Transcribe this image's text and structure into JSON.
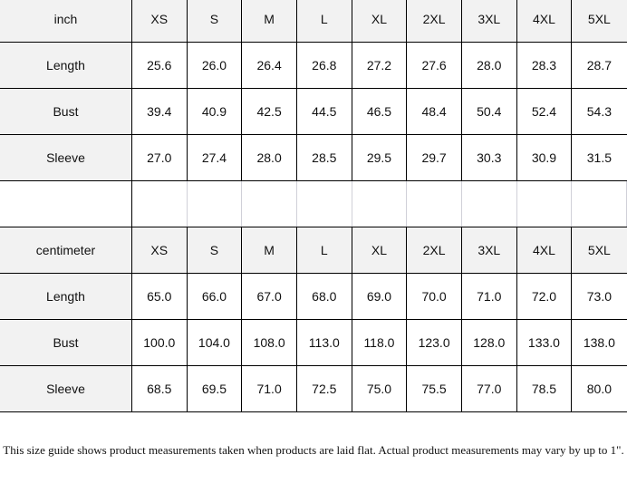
{
  "inch_table": {
    "unit_label": "inch",
    "sizes": [
      "XS",
      "S",
      "M",
      "L",
      "XL",
      "2XL",
      "3XL",
      "4XL",
      "5XL"
    ],
    "rows": [
      {
        "label": "Length",
        "values": [
          "25.6",
          "26.0",
          "26.4",
          "26.8",
          "27.2",
          "27.6",
          "28.0",
          "28.3",
          "28.7"
        ]
      },
      {
        "label": "Bust",
        "values": [
          "39.4",
          "40.9",
          "42.5",
          "44.5",
          "46.5",
          "48.4",
          "50.4",
          "52.4",
          "54.3"
        ]
      },
      {
        "label": "Sleeve",
        "values": [
          "27.0",
          "27.4",
          "28.0",
          "28.5",
          "29.5",
          "29.7",
          "30.3",
          "30.9",
          "31.5"
        ]
      }
    ]
  },
  "cm_table": {
    "unit_label": "centimeter",
    "sizes": [
      "XS",
      "S",
      "M",
      "L",
      "XL",
      "2XL",
      "3XL",
      "4XL",
      "5XL"
    ],
    "rows": [
      {
        "label": "Length",
        "values": [
          "65.0",
          "66.0",
          "67.0",
          "68.0",
          "69.0",
          "70.0",
          "71.0",
          "72.0",
          "73.0"
        ]
      },
      {
        "label": "Bust",
        "values": [
          "100.0",
          "104.0",
          "108.0",
          "113.0",
          "118.0",
          "123.0",
          "128.0",
          "133.0",
          "138.0"
        ]
      },
      {
        "label": "Sleeve",
        "values": [
          "68.5",
          "69.5",
          "71.0",
          "72.5",
          "75.0",
          "75.5",
          "77.0",
          "78.5",
          "80.0"
        ]
      }
    ]
  },
  "note": "This size guide shows product measurements taken when products are laid flat. Actual product measurements may vary by up to 1\"."
}
